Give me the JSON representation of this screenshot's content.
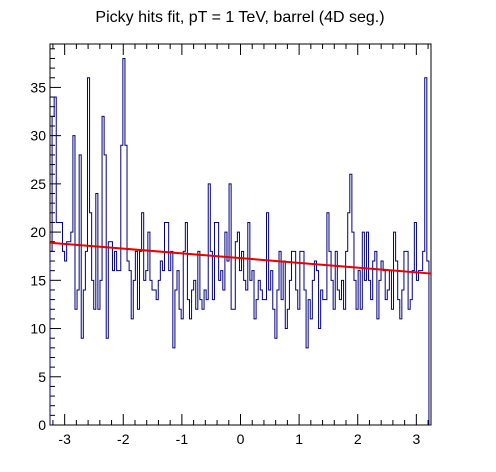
{
  "chart_data": {
    "type": "histogram",
    "title": "Picky hits fit, pT = 1 TeV, barrel (4D seg.)",
    "xlabel": "",
    "ylabel": "",
    "xlim": [
      -3.25,
      3.25
    ],
    "ylim": [
      0,
      39.5
    ],
    "x_bin_edges_start": -3.25,
    "bin_width": 0.1,
    "values": [
      18,
      32,
      34,
      21,
      21,
      21,
      18,
      17,
      19,
      19,
      20,
      30,
      12,
      14,
      28,
      9,
      14,
      18,
      36,
      22,
      15,
      12,
      24,
      12,
      15,
      32,
      28,
      9,
      19,
      19,
      16,
      18,
      16,
      16,
      29,
      38,
      29,
      17,
      16,
      11,
      15,
      18,
      12,
      18,
      22,
      15,
      16,
      20,
      15,
      14,
      14,
      13,
      15,
      17,
      16,
      21,
      21,
      16,
      18,
      8,
      14,
      16,
      12,
      11,
      18,
      21,
      13,
      11,
      14,
      15,
      12,
      18,
      13,
      12,
      14,
      13,
      25,
      18,
      13,
      21,
      21,
      15,
      16,
      14,
      20,
      17,
      25,
      12,
      12,
      19,
      20,
      16,
      18,
      15,
      14,
      21,
      15,
      16,
      11,
      13,
      15,
      14,
      13,
      13,
      22,
      14,
      16,
      12,
      9,
      14,
      18,
      13,
      17,
      10,
      12,
      15,
      18,
      18,
      14,
      12,
      18,
      18,
      14,
      8,
      13,
      11,
      15,
      17,
      16,
      10,
      14,
      13,
      13,
      22,
      18,
      15,
      12,
      18,
      14,
      13,
      15,
      12,
      18,
      22,
      26,
      20,
      15,
      12,
      16,
      12,
      20,
      15,
      20,
      15,
      13,
      17,
      18,
      11,
      15,
      17,
      16,
      13,
      14,
      16,
      12,
      20,
      17,
      13,
      11,
      14,
      18,
      18,
      12,
      13,
      16,
      21,
      15,
      16,
      16,
      18,
      36,
      17,
      0
    ],
    "fit": {
      "color": "#e60000",
      "y_at_xmin": 18.9,
      "y_at_xmax": 15.7
    },
    "x_ticks": [
      -3,
      -2,
      -1,
      0,
      1,
      2,
      3
    ],
    "x_tick_labels": [
      "-3",
      "-2",
      "-1",
      "0",
      "1",
      "2",
      "3"
    ],
    "y_ticks": [
      0,
      5,
      10,
      15,
      20,
      25,
      30,
      35
    ],
    "y_tick_labels": [
      "0",
      "5",
      "10",
      "15",
      "20",
      "25",
      "30",
      "35"
    ],
    "colors": {
      "histogram": "#000080",
      "frame": "#000000"
    },
    "grid": false
  }
}
